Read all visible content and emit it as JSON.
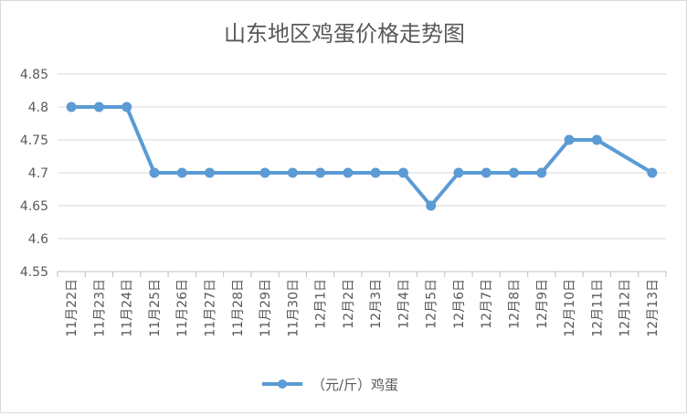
{
  "chart_data": {
    "type": "line",
    "title": "山东地区鸡蛋价格走势图",
    "categories": [
      "11月22日",
      "11月23日",
      "11月24日",
      "11月25日",
      "11月26日",
      "11月27日",
      "11月28日",
      "11月29日",
      "11月30日",
      "12月1日",
      "12月2日",
      "12月3日",
      "12月4日",
      "12月5日",
      "12月6日",
      "12月7日",
      "12月8日",
      "12月9日",
      "12月10日",
      "12月11日",
      "12月12日",
      "12月13日"
    ],
    "series": [
      {
        "name": "（元/斤）鸡蛋",
        "color": "#5b9bd5",
        "values": [
          4.8,
          4.8,
          4.8,
          4.7,
          4.7,
          4.7,
          null,
          4.7,
          4.7,
          4.7,
          4.7,
          4.7,
          4.7,
          4.65,
          4.7,
          4.7,
          4.7,
          4.7,
          4.75,
          4.75,
          null,
          4.7
        ]
      }
    ],
    "yticks": [
      "4.55",
      "4.6",
      "4.65",
      "4.7",
      "4.75",
      "4.8",
      "4.85"
    ],
    "ylim": [
      4.55,
      4.85
    ],
    "grid": true,
    "legend": "bottom",
    "gaps": "span"
  }
}
